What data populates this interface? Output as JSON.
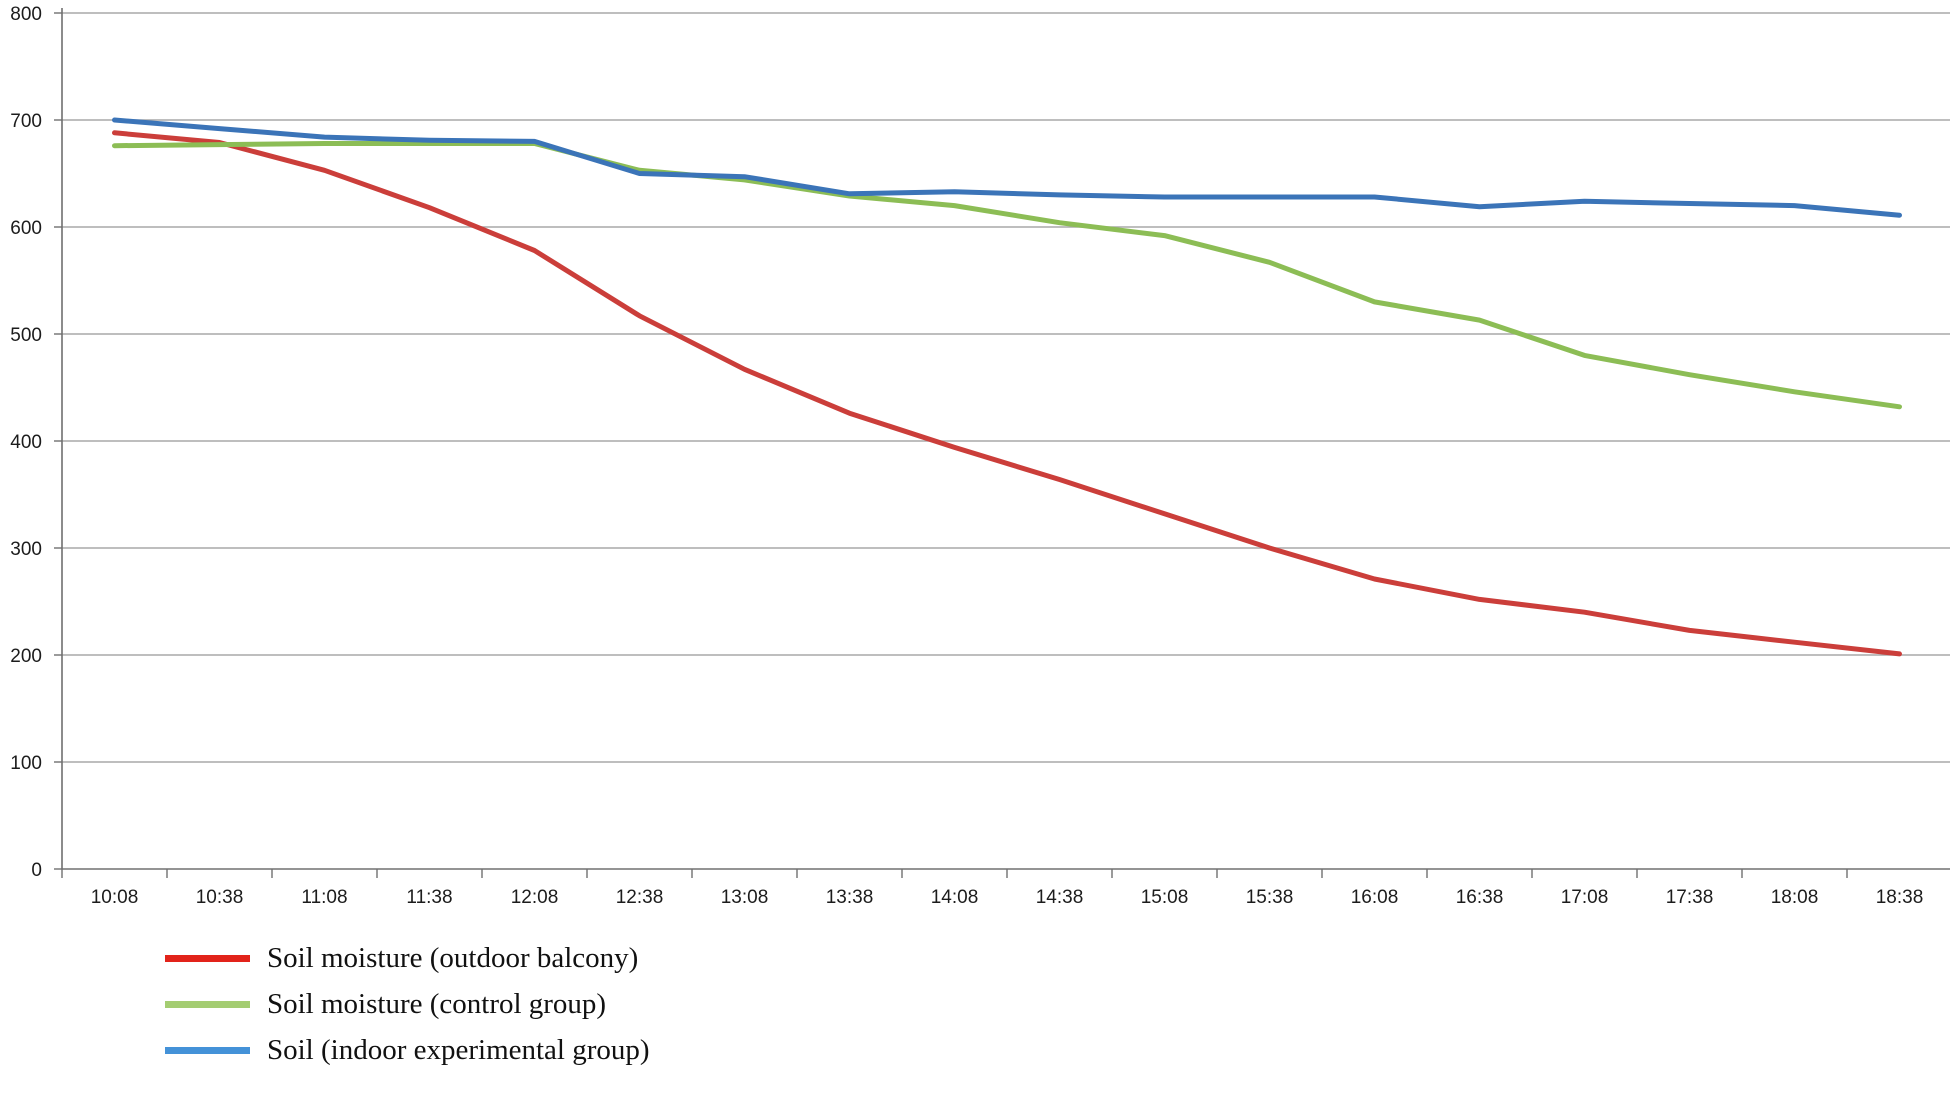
{
  "chart_data": {
    "type": "line",
    "title": "",
    "xlabel": "",
    "ylabel": "",
    "x_categories": [
      "10:08",
      "10:38",
      "11:08",
      "11:38",
      "12:08",
      "12:38",
      "13:08",
      "13:38",
      "14:08",
      "14:38",
      "15:08",
      "15:38",
      "16:08",
      "16:38",
      "17:08",
      "17:38",
      "18:08",
      "18:38"
    ],
    "y_ticks": [
      0,
      100,
      200,
      300,
      400,
      500,
      600,
      700,
      800
    ],
    "ylim": [
      0,
      800
    ],
    "grid": true,
    "legend_position": "bottom-left",
    "series": [
      {
        "name": "Soil moisture (outdoor balcony)",
        "color": "#cb3e3a",
        "legend_color": "#e2231a",
        "values": [
          688,
          679,
          653,
          618,
          578,
          517,
          467,
          426,
          394,
          364,
          332,
          300,
          271,
          252,
          240,
          223,
          212,
          201
        ]
      },
      {
        "name": "Soil moisture (control group)",
        "color": "#8cbd55",
        "legend_color": "#a4cd72",
        "values": [
          676,
          677,
          678,
          678,
          678,
          653,
          644,
          629,
          620,
          604,
          592,
          567,
          530,
          513,
          480,
          462,
          446,
          432
        ]
      },
      {
        "name": "Soil (indoor experimental group)",
        "color": "#3b74b8",
        "legend_color": "#4492d8",
        "values": [
          700,
          692,
          684,
          681,
          680,
          650,
          647,
          631,
          633,
          630,
          628,
          628,
          628,
          619,
          624,
          622,
          620,
          611
        ]
      }
    ]
  },
  "colors": {
    "grid": "#a8a8a8",
    "axis": "#707070",
    "tick": "#707070",
    "text": "#1c1c1c",
    "background": "#ffffff"
  }
}
